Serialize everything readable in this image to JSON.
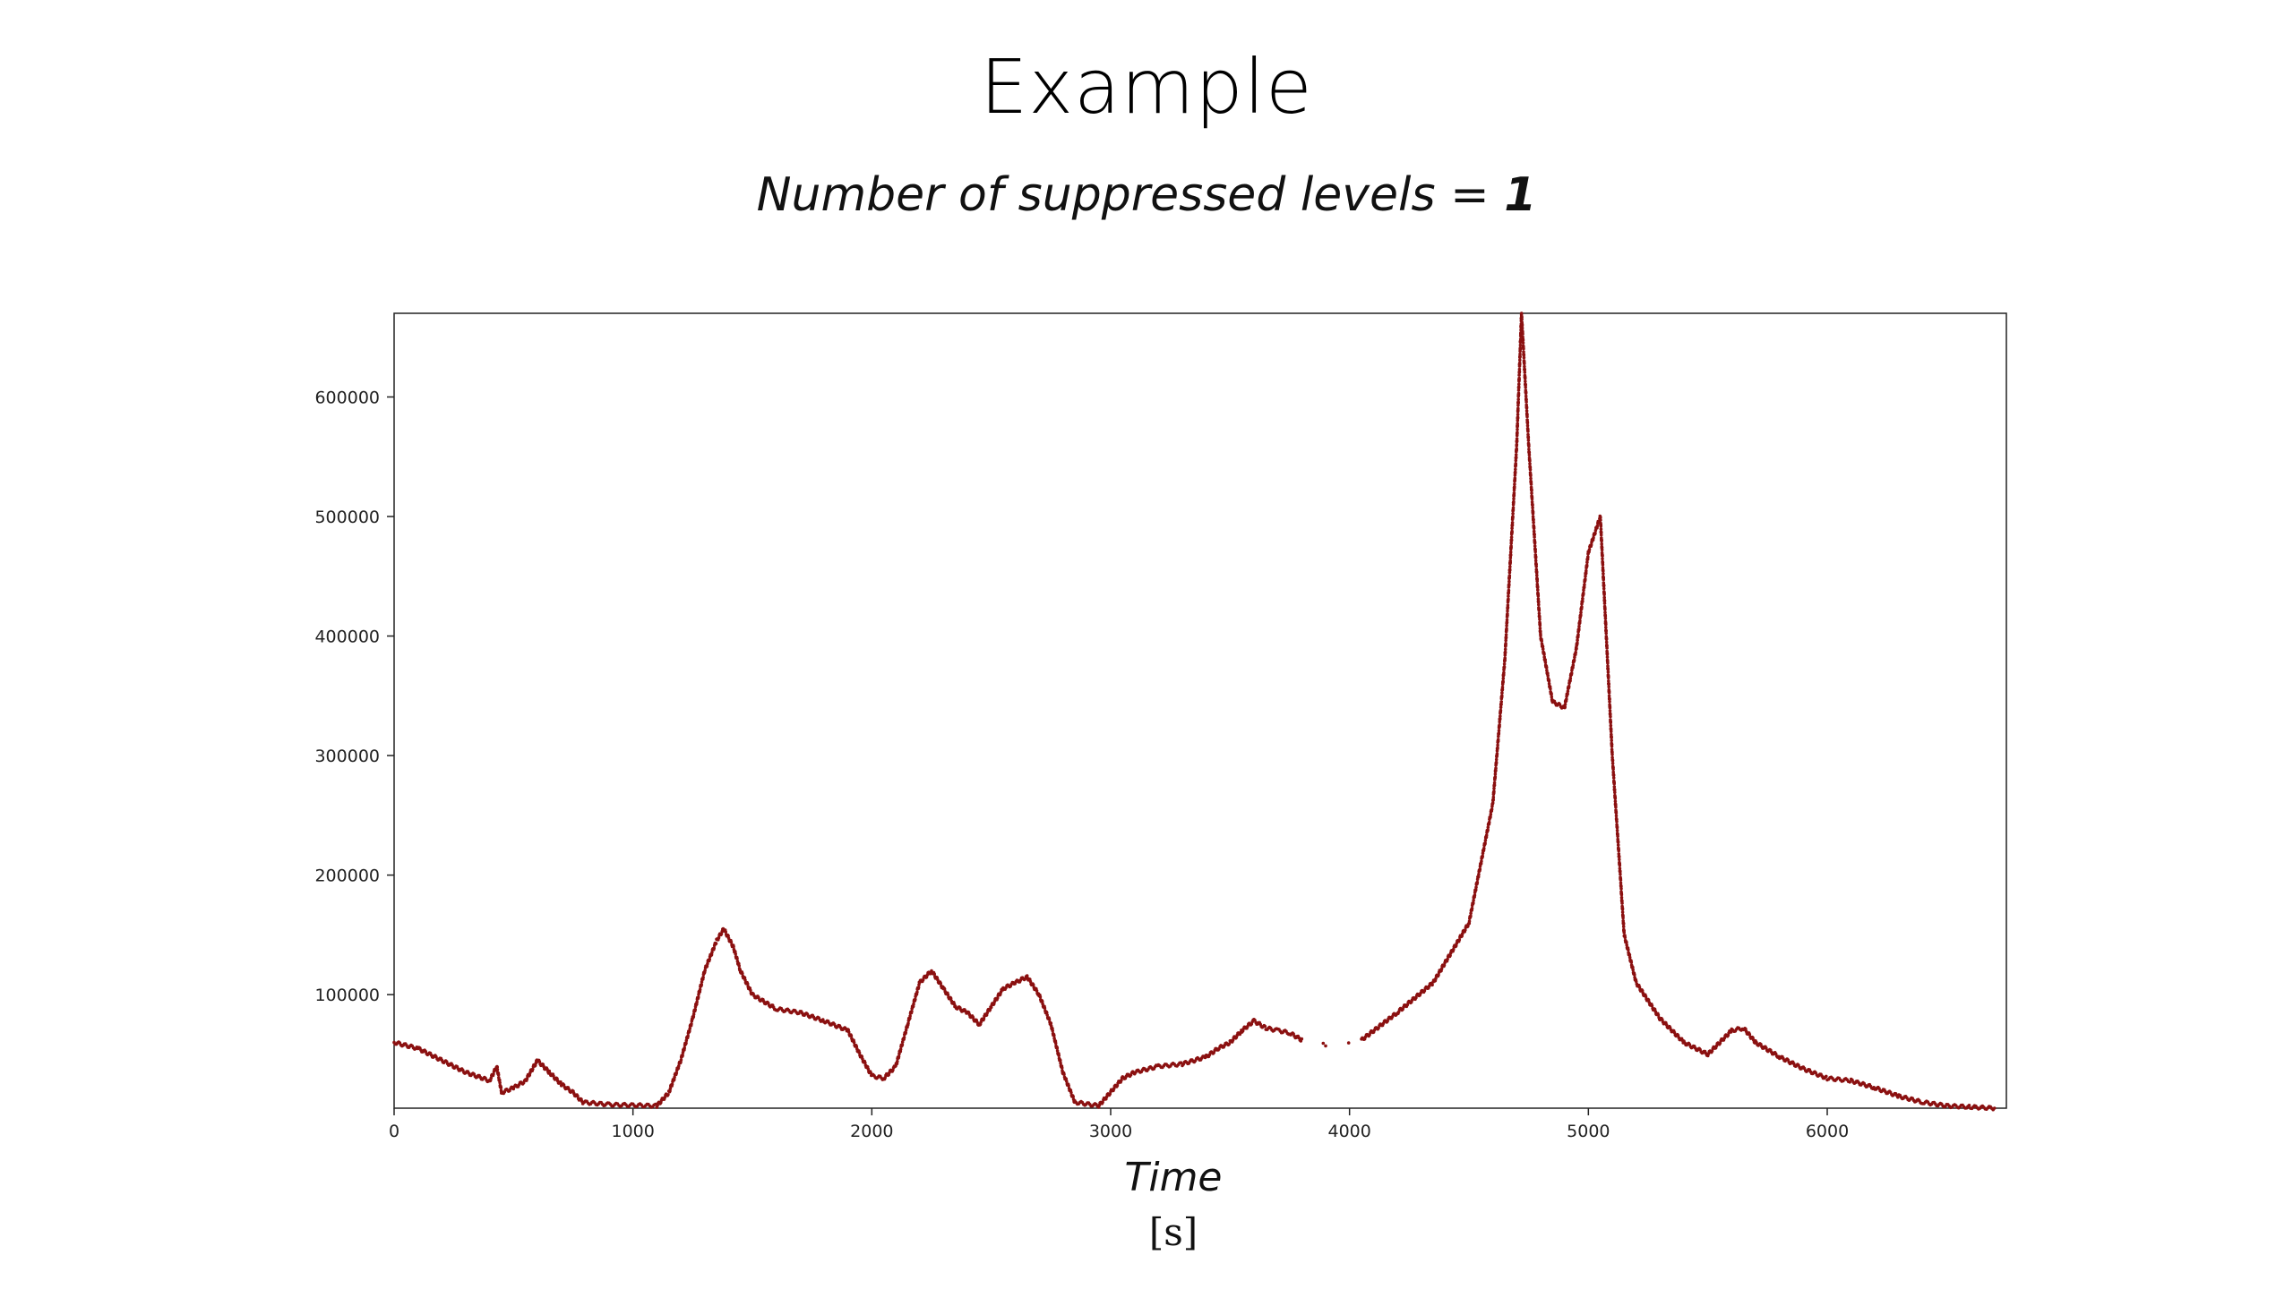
{
  "slide": {
    "title": "Example",
    "subtitle_prefix": "Number of suppressed levels = ",
    "subtitle_value": "1"
  },
  "chart_data": {
    "type": "scatter",
    "title": "",
    "xlabel": "Time",
    "xunit": "[s]",
    "ylabel": "",
    "xlim": [
      0,
      6750
    ],
    "ylim": [
      5000,
      670000
    ],
    "grid": false,
    "legend": "none",
    "marker_color": "#8b1010",
    "xticks": [
      0,
      1000,
      2000,
      3000,
      4000,
      5000,
      6000
    ],
    "yticks": [
      100000,
      200000,
      300000,
      400000,
      500000,
      600000
    ],
    "xtick_labels": [
      "0",
      "1000",
      "2000",
      "3000",
      "4000",
      "5000",
      "6000"
    ],
    "ytick_labels": [
      "100000",
      "200000",
      "300000",
      "400000",
      "500000",
      "600000"
    ],
    "series": [
      {
        "x": [
          0,
          100,
          200,
          300,
          400,
          430,
          450,
          500,
          550,
          600,
          650,
          700,
          750,
          790,
          900,
          1100,
          1150,
          1200,
          1250,
          1300,
          1350,
          1380,
          1420,
          1450,
          1500,
          1600,
          1700,
          1800,
          1900,
          1950,
          2000,
          2050,
          2100,
          2150,
          2200,
          2250,
          2300,
          2350,
          2400,
          2450,
          2500,
          2550,
          2600,
          2650,
          2700,
          2750,
          2800,
          2850,
          2950,
          3050,
          3100,
          3200,
          3300,
          3400,
          3450,
          3500,
          3550,
          3600,
          3650,
          3700,
          3750,
          3800,
          3900,
          4050,
          4200,
          4350,
          4500,
          4600,
          4650,
          4700,
          4720,
          4750,
          4800,
          4850,
          4900,
          4950,
          5000,
          5050,
          5100,
          5150,
          5200,
          5300,
          5400,
          5500,
          5600,
          5650,
          5700,
          5800,
          5900,
          6000,
          6100,
          6200,
          6300,
          6400,
          6500,
          6600,
          6700
        ],
        "y": [
          60000,
          55000,
          45000,
          35000,
          28000,
          40000,
          18000,
          22000,
          28000,
          45000,
          35000,
          25000,
          18000,
          10000,
          8000,
          7000,
          18000,
          45000,
          80000,
          120000,
          145000,
          155000,
          140000,
          120000,
          100000,
          88000,
          85000,
          78000,
          70000,
          50000,
          32000,
          30000,
          40000,
          75000,
          110000,
          120000,
          105000,
          90000,
          85000,
          75000,
          90000,
          105000,
          110000,
          115000,
          100000,
          75000,
          35000,
          10000,
          7000,
          30000,
          35000,
          40000,
          42000,
          48000,
          55000,
          60000,
          70000,
          78000,
          72000,
          70000,
          68000,
          62000,
          58000,
          62000,
          85000,
          110000,
          160000,
          260000,
          380000,
          560000,
          670000,
          560000,
          400000,
          345000,
          340000,
          390000,
          470000,
          500000,
          300000,
          150000,
          110000,
          80000,
          60000,
          50000,
          70000,
          72000,
          60000,
          48000,
          38000,
          30000,
          28000,
          22000,
          15000,
          10000,
          7000,
          6000,
          5000
        ]
      }
    ]
  }
}
